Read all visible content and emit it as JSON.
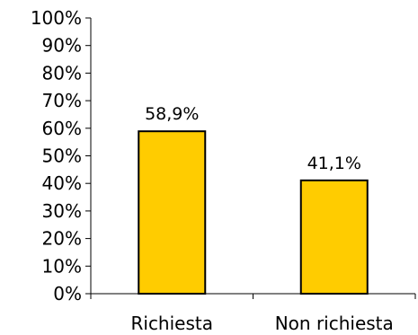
{
  "chart_data": {
    "type": "bar",
    "categories": [
      "Richiesta",
      "Non richiesta"
    ],
    "values": [
      58.9,
      41.1
    ],
    "data_labels": [
      "58,9%",
      "41,1%"
    ],
    "yticks": [
      "0%",
      "10%",
      "20%",
      "30%",
      "40%",
      "50%",
      "60%",
      "70%",
      "80%",
      "90%",
      "100%"
    ],
    "ylim": [
      0,
      100
    ],
    "title": "",
    "xlabel": "",
    "ylabel": "",
    "grid": false,
    "colors": {
      "bar_fill": "#ffcc00",
      "bar_stroke": "#000000",
      "axis": "#000000"
    }
  }
}
